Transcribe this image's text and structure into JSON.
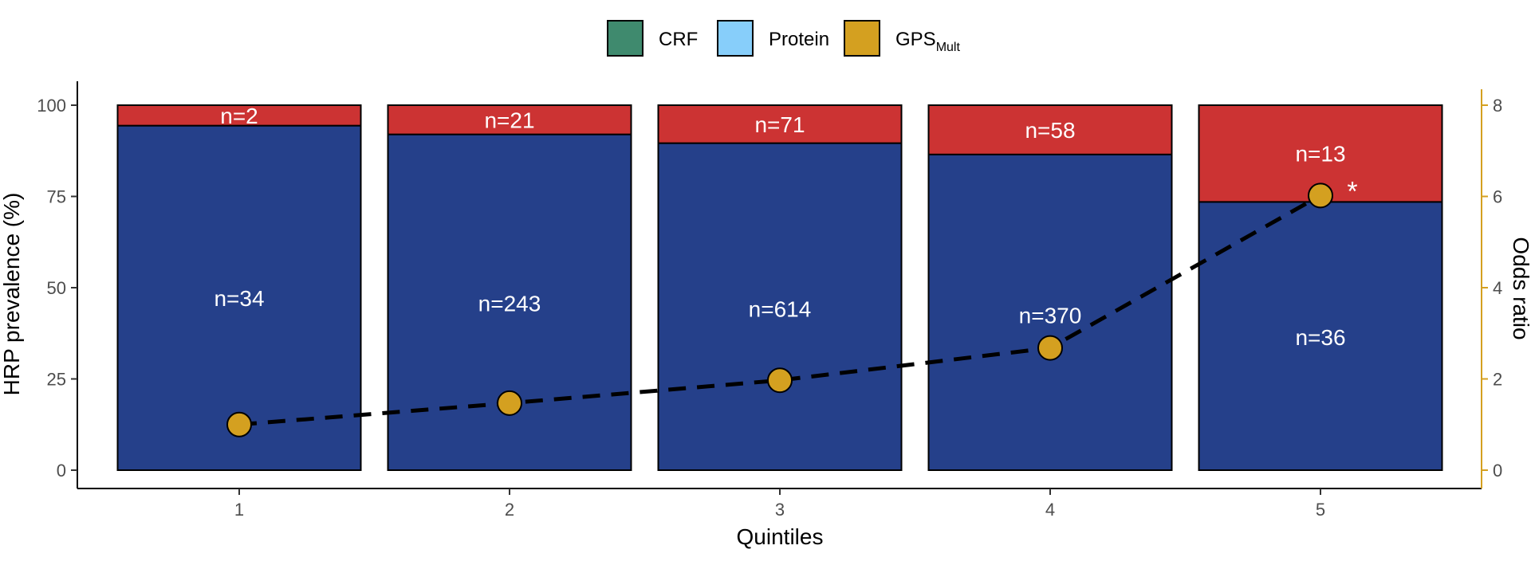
{
  "legend": [
    {
      "label": "CRF",
      "color": "#3f8a6e"
    },
    {
      "label": "Protein",
      "color": "#87cefa"
    },
    {
      "label": "GPS",
      "sub": "Mult",
      "color": "#d4a020"
    }
  ],
  "chart_data": {
    "type": "bar",
    "stacked": true,
    "categories": [
      "1",
      "2",
      "3",
      "4",
      "5"
    ],
    "series": [
      {
        "values": [
          94.4,
          92.0,
          89.6,
          86.5,
          73.5
        ],
        "counts": [
          "n=34",
          "n=243",
          "n=614",
          "n=370",
          "n=36"
        ],
        "color": "#25408a"
      },
      {
        "values": [
          5.6,
          8.0,
          10.4,
          13.5,
          26.5
        ],
        "counts": [
          "n=2",
          "n=21",
          "n=71",
          "n=58",
          "n=13"
        ],
        "color": "#cc3333"
      }
    ],
    "odds_ratio": {
      "values": [
        1.0,
        1.47,
        1.97,
        2.68,
        6.02
      ],
      "color": "#d4a020",
      "line": "dashed",
      "significance": [
        "",
        "",
        "",
        "",
        "*"
      ]
    },
    "xlabel": "Quintiles",
    "ylabel": "HRP prevalence (%)",
    "ylabel_right": "Odds ratio",
    "ylim": [
      0,
      100
    ],
    "yticks": [
      "0",
      "25",
      "50",
      "75",
      "100"
    ],
    "ylim_right": [
      0,
      8
    ],
    "yticks_right": [
      "0",
      "2",
      "4",
      "6",
      "8"
    ],
    "legend_position": "top",
    "grid": false
  }
}
